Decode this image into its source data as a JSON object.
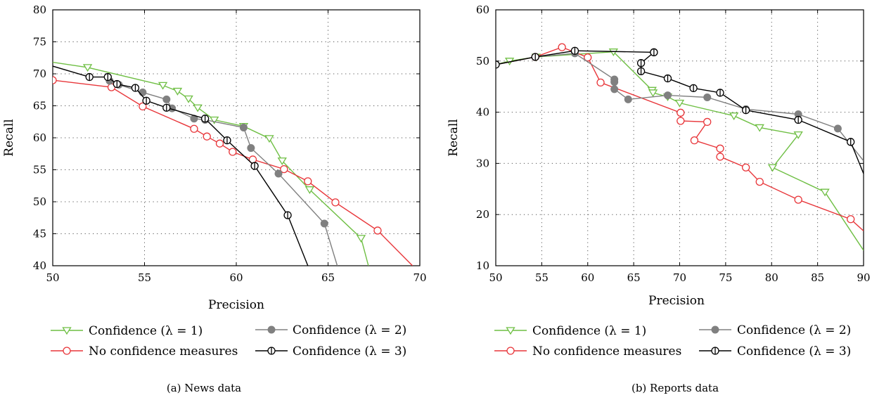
{
  "chart_data": [
    {
      "type": "line",
      "caption": "(a)  News data",
      "xlabel": "Precision",
      "ylabel": "Recall",
      "xlim": [
        50,
        70
      ],
      "ylim": [
        40,
        80
      ],
      "xticks": [
        50,
        55,
        60,
        65,
        70
      ],
      "yticks": [
        40,
        45,
        50,
        55,
        60,
        65,
        70,
        75,
        80
      ],
      "grid": true,
      "legend_position": "bottom",
      "series": [
        {
          "name": "Confidence (λ = 1)",
          "color": "#6fbf44",
          "marker": "triangle-down",
          "x": [
            50,
            51.9,
            56,
            56.8,
            57.4,
            57.9,
            58.8,
            60.4,
            61.8,
            62.5,
            64,
            66.8,
            67.2
          ],
          "y": [
            71.8,
            71.0,
            68.2,
            67.3,
            66.1,
            64.7,
            62.8,
            61.8,
            59.9,
            56.4,
            51.9,
            44.3,
            40.0
          ]
        },
        {
          "name": "No confidence measures",
          "color": "#e8363a",
          "marker": "circle-open",
          "x": [
            50,
            53.2,
            54.9,
            57.7,
            58.4,
            59.1,
            59.8,
            60.9,
            62.6,
            63.9,
            65.4,
            67.7,
            69.6
          ],
          "y": [
            69.0,
            67.9,
            64.9,
            61.4,
            60.2,
            59.1,
            57.8,
            56.6,
            55.1,
            53.2,
            49.9,
            45.5,
            40.0
          ]
        },
        {
          "name": "Confidence (λ = 2)",
          "color": "#808080",
          "marker": "circle-filled",
          "x": [
            53.1,
            53.6,
            54.9,
            56.2,
            56.5,
            57.7,
            58.3,
            60.4,
            60.8,
            62.3,
            64.8,
            65.5
          ],
          "y": [
            68.9,
            68.3,
            67.1,
            66.0,
            64.6,
            63.0,
            62.8,
            61.6,
            58.4,
            54.4,
            46.6,
            40.0
          ]
        },
        {
          "name": "Confidence (λ = 3)",
          "color": "#000000",
          "marker": "circle-open-bar",
          "x": [
            50,
            52.0,
            53.0,
            53.5,
            54.5,
            55.1,
            56.2,
            58.3,
            59.5,
            61.0,
            62.8,
            63.9
          ],
          "y": [
            71.2,
            69.5,
            69.5,
            68.4,
            67.8,
            65.8,
            64.7,
            63.0,
            59.6,
            55.6,
            47.9,
            40.0
          ]
        }
      ]
    },
    {
      "type": "line",
      "caption": "(b)  Reports data",
      "xlabel": "Precision",
      "ylabel": "Recall",
      "xlim": [
        50,
        90
      ],
      "ylim": [
        10,
        60
      ],
      "xticks": [
        50,
        55,
        60,
        65,
        70,
        75,
        80,
        85,
        90
      ],
      "yticks": [
        10,
        20,
        30,
        40,
        50,
        60
      ],
      "grid": true,
      "legend_position": "bottom",
      "series": [
        {
          "name": "Confidence (λ = 1)",
          "color": "#6fbf44",
          "marker": "triangle-down",
          "x": [
            50,
            51.5,
            54.4,
            62.8,
            67.0,
            67.1,
            68.7,
            70.0,
            75.9,
            78.7,
            82.9,
            80.1,
            85.8,
            90
          ],
          "y": [
            49.3,
            50.0,
            50.8,
            51.8,
            44.3,
            43.8,
            43.0,
            41.8,
            39.3,
            37.0,
            35.6,
            29.2,
            24.4,
            13.0
          ]
        },
        {
          "name": "No confidence measures",
          "color": "#e8363a",
          "marker": "circle-open",
          "x": [
            50,
            54.3,
            57.2,
            60.0,
            61.4,
            70.1,
            70.1,
            73.0,
            71.6,
            74.4,
            74.4,
            77.2,
            78.7,
            82.9,
            88.6,
            90
          ],
          "y": [
            49.3,
            50.8,
            52.7,
            50.7,
            45.8,
            39.9,
            38.3,
            38.1,
            34.5,
            32.9,
            31.3,
            29.2,
            26.4,
            22.9,
            19.1,
            16.8
          ]
        },
        {
          "name": "Confidence (λ = 2)",
          "color": "#808080",
          "marker": "circle-filled",
          "x": [
            50,
            54.3,
            58.6,
            62.9,
            62.9,
            62.9,
            64.4,
            68.7,
            73.0,
            77.2,
            82.9,
            87.2,
            90
          ],
          "y": [
            49.3,
            50.8,
            51.5,
            46.4,
            45.9,
            44.5,
            42.5,
            43.3,
            42.9,
            40.6,
            39.6,
            36.8,
            30.5
          ]
        },
        {
          "name": "Confidence (λ = 3)",
          "color": "#000000",
          "marker": "circle-open-bar",
          "x": [
            50,
            54.3,
            58.6,
            67.2,
            67.2,
            65.8,
            65.8,
            68.7,
            71.5,
            74.4,
            77.2,
            82.9,
            88.6,
            90
          ],
          "y": [
            49.3,
            50.8,
            52.0,
            51.7,
            51.7,
            49.6,
            48.0,
            46.6,
            44.7,
            43.8,
            40.4,
            38.5,
            34.2,
            28.0
          ]
        }
      ]
    }
  ]
}
